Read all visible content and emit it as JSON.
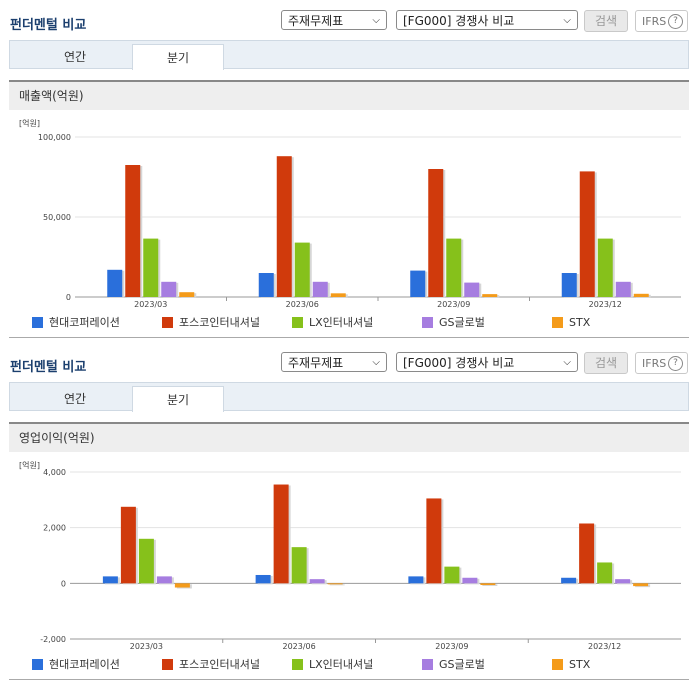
{
  "sections": [
    {
      "title": "펀더멘털 비교",
      "select1": "주재무제표",
      "select2": "[FG000] 경쟁사 비교",
      "search_label": "검색",
      "ifrs_label": "IFRS",
      "help_label": "?",
      "tabs": [
        "연간",
        "분기"
      ],
      "chart_title": "매출액(억원)"
    },
    {
      "title": "펀더멘털 비교",
      "select1": "주재무제표",
      "select2": "[FG000] 경쟁사 비교",
      "search_label": "검색",
      "ifrs_label": "IFRS",
      "help_label": "?",
      "tabs": [
        "연간",
        "분기"
      ],
      "chart_title": "영업이익(억원)"
    }
  ],
  "colors": [
    "#2a6fdb",
    "#d03a0c",
    "#86c11b",
    "#a67de0",
    "#f49b1a"
  ],
  "chart_data": [
    {
      "type": "bar",
      "title": "매출액(억원)",
      "unit_label": "[억원]",
      "categories": [
        "2023/03",
        "2023/06",
        "2023/09",
        "2023/12"
      ],
      "series": [
        {
          "name": "현대코퍼레이션",
          "values": [
            17000,
            15000,
            16500,
            15000
          ]
        },
        {
          "name": "포스코인터내셔널",
          "values": [
            82500,
            88000,
            80000,
            78500
          ]
        },
        {
          "name": "LX인터내셔널",
          "values": [
            36500,
            34000,
            36500,
            36500
          ]
        },
        {
          "name": "GS글로벌",
          "values": [
            9500,
            9500,
            9000,
            9500
          ]
        },
        {
          "name": "STX",
          "values": [
            3000,
            2300,
            1800,
            2000
          ]
        }
      ],
      "ylim": [
        0,
        100000
      ],
      "yticks": [
        0,
        50000,
        100000
      ],
      "ytick_labels": [
        "0",
        "50,000",
        "100,000"
      ],
      "grid": true,
      "legend": "bottom"
    },
    {
      "type": "bar",
      "title": "영업이익(억원)",
      "unit_label": "[억원]",
      "categories": [
        "2023/03",
        "2023/06",
        "2023/09",
        "2023/12"
      ],
      "series": [
        {
          "name": "현대코퍼레이션",
          "values": [
            250,
            300,
            250,
            200
          ]
        },
        {
          "name": "포스코인터내셔널",
          "values": [
            2750,
            3550,
            3050,
            2150
          ]
        },
        {
          "name": "LX인터내셔널",
          "values": [
            1600,
            1300,
            600,
            750
          ]
        },
        {
          "name": "GS글로벌",
          "values": [
            250,
            150,
            200,
            150
          ]
        },
        {
          "name": "STX",
          "values": [
            -150,
            0,
            -60,
            -100
          ]
        }
      ],
      "ylim": [
        -2000,
        4000
      ],
      "yticks": [
        -2000,
        0,
        2000,
        4000
      ],
      "ytick_labels": [
        "-2,000",
        "0",
        "2,000",
        "4,000"
      ],
      "grid": true,
      "legend": "bottom"
    }
  ]
}
